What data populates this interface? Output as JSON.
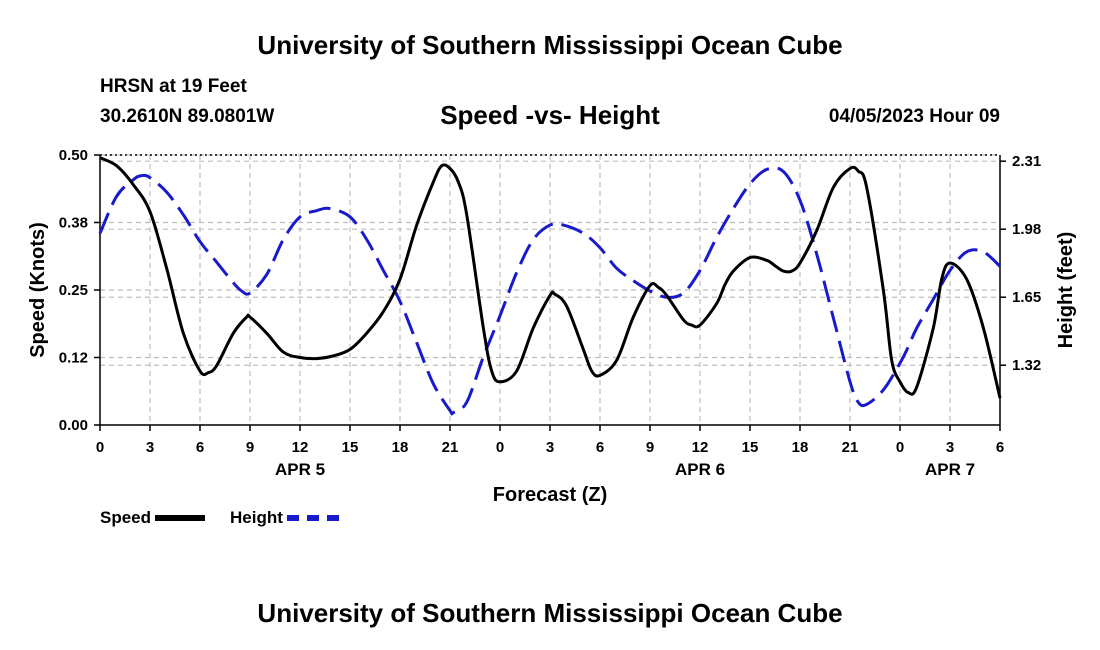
{
  "header": {
    "title": "University of Southern Mississippi Ocean Cube",
    "station": "HRSN at 19 Feet",
    "coords": "30.2610N  89.0801W",
    "subtitle": "Speed -vs- Height",
    "datetime": "04/05/2023 Hour 09"
  },
  "footer": {
    "title": "University of Southern Mississippi Ocean Cube"
  },
  "legend": {
    "speed": "Speed",
    "height": "Height"
  },
  "chart_data": {
    "type": "line",
    "title": "Speed -vs- Height",
    "xlabel": "Forecast (Z)",
    "ylabel": "Speed (Knots)",
    "y2label": "Height (feet)",
    "x_unit": "hours since 2023-04-05 00Z",
    "xlim": [
      0,
      54
    ],
    "ylim": [
      0,
      0.5
    ],
    "y2lim": [
      1.03,
      2.34
    ],
    "x_ticks": [
      0,
      3,
      6,
      9,
      12,
      15,
      18,
      21,
      24,
      27,
      30,
      33,
      36,
      39,
      42,
      45,
      48,
      51,
      54
    ],
    "x_tick_labels": [
      "0",
      "3",
      "6",
      "9",
      "12",
      "15",
      "18",
      "21",
      "0",
      "3",
      "6",
      "9",
      "12",
      "15",
      "18",
      "21",
      "0",
      "3",
      "6"
    ],
    "y_ticks": [
      0,
      0.125,
      0.25,
      0.375,
      0.5
    ],
    "y_tick_labels": [
      "0.00",
      "0.12",
      "0.25",
      "0.38",
      "0.50"
    ],
    "y2_ticks": [
      1.32,
      1.65,
      1.98,
      2.31
    ],
    "y2_tick_labels": [
      "1.32",
      "1.65",
      "1.98",
      "2.31"
    ],
    "day_labels": [
      {
        "x": 12,
        "label": "APR 5"
      },
      {
        "x": 36,
        "label": "APR 6"
      },
      {
        "x": 51,
        "label": "APR 7"
      }
    ],
    "grid": true,
    "legend_position": "bottom-left",
    "series": [
      {
        "name": "Speed",
        "axis": "left",
        "color": "#000000",
        "style": "solid",
        "x": [
          0,
          1,
          2,
          3,
          4,
          5,
          6,
          6.5,
          7,
          8,
          8.8,
          9,
          10,
          11,
          12,
          13,
          14,
          15,
          16,
          17,
          18,
          19,
          20,
          20.5,
          21,
          21.5,
          22,
          23,
          23.5,
          24,
          25,
          26,
          27,
          27.3,
          28,
          29,
          29.5,
          30,
          31,
          32,
          33,
          33.5,
          34,
          35,
          35.5,
          36,
          37,
          37.5,
          38,
          39,
          40,
          40.5,
          41,
          41.5,
          42,
          43,
          44,
          45,
          45.5,
          46,
          47,
          47.5,
          48,
          48.5,
          49,
          50,
          50.5,
          51,
          52,
          53,
          54
        ],
        "values": [
          0.495,
          0.48,
          0.445,
          0.395,
          0.29,
          0.17,
          0.1,
          0.097,
          0.11,
          0.17,
          0.2,
          0.2,
          0.17,
          0.135,
          0.125,
          0.123,
          0.128,
          0.14,
          0.17,
          0.21,
          0.27,
          0.37,
          0.45,
          0.48,
          0.475,
          0.45,
          0.39,
          0.18,
          0.1,
          0.08,
          0.1,
          0.18,
          0.24,
          0.242,
          0.22,
          0.14,
          0.1,
          0.092,
          0.12,
          0.2,
          0.258,
          0.255,
          0.24,
          0.195,
          0.185,
          0.185,
          0.225,
          0.26,
          0.285,
          0.31,
          0.305,
          0.295,
          0.285,
          0.285,
          0.3,
          0.36,
          0.44,
          0.475,
          0.47,
          0.44,
          0.25,
          0.12,
          0.08,
          0.06,
          0.07,
          0.18,
          0.27,
          0.3,
          0.27,
          0.18,
          0.05
        ]
      },
      {
        "name": "Height",
        "axis": "right",
        "color": "#1a1acd",
        "style": "dashed",
        "x": [
          0,
          1,
          2,
          2.5,
          3,
          4,
          5,
          6,
          7,
          8,
          8.5,
          9,
          10,
          11,
          12,
          13,
          13.8,
          15,
          16,
          17,
          18,
          19,
          20,
          21,
          21.2,
          22,
          23,
          24,
          25,
          26,
          27,
          27.8,
          29,
          30,
          31,
          32,
          33,
          34,
          35,
          36,
          37,
          38,
          39,
          40,
          41,
          42,
          43,
          44,
          45,
          45.5,
          46,
          47,
          48,
          48.5,
          49,
          50,
          51,
          52,
          53,
          54
        ],
        "values": [
          1.96,
          2.14,
          2.22,
          2.24,
          2.23,
          2.16,
          2.05,
          1.92,
          1.82,
          1.72,
          1.68,
          1.67,
          1.76,
          1.93,
          2.04,
          2.07,
          2.08,
          2.04,
          1.93,
          1.78,
          1.63,
          1.43,
          1.23,
          1.1,
          1.09,
          1.14,
          1.36,
          1.56,
          1.77,
          1.93,
          2.0,
          2.0,
          1.96,
          1.89,
          1.79,
          1.73,
          1.68,
          1.65,
          1.67,
          1.78,
          1.94,
          2.08,
          2.2,
          2.27,
          2.26,
          2.12,
          1.86,
          1.55,
          1.24,
          1.14,
          1.13,
          1.2,
          1.33,
          1.41,
          1.5,
          1.64,
          1.78,
          1.87,
          1.87,
          1.8
        ]
      }
    ]
  }
}
